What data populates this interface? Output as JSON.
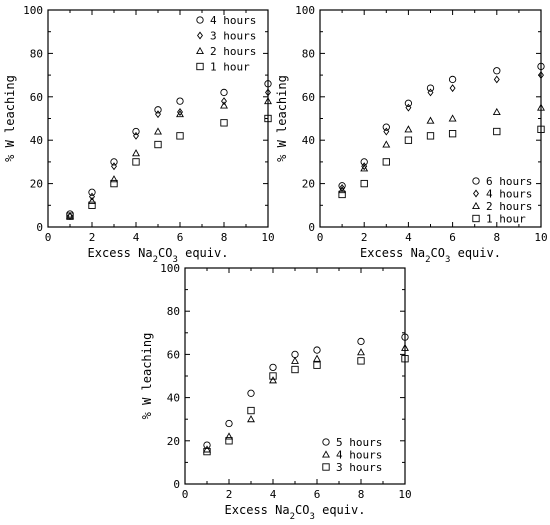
{
  "figure": {
    "description_free": true
  },
  "chart_data": [
    {
      "type": "scatter",
      "xlabel": "Excess Na2CO3 equiv.",
      "ylabel": "% W leaching",
      "xlim": [
        0,
        10
      ],
      "ylim": [
        0,
        100
      ],
      "xticks": [
        0,
        2,
        4,
        6,
        8,
        10
      ],
      "yticks": [
        0,
        20,
        40,
        60,
        80,
        100
      ],
      "legend_position": "top-right",
      "x": [
        1,
        2,
        3,
        4,
        5,
        6,
        8,
        10
      ],
      "series": [
        {
          "name": "4 hours",
          "marker": "circle",
          "values": [
            6,
            16,
            30,
            44,
            54,
            58,
            62,
            66
          ]
        },
        {
          "name": "3 hours",
          "marker": "diamond",
          "values": [
            5,
            14,
            28,
            42,
            52,
            53,
            58,
            62
          ]
        },
        {
          "name": "2 hours",
          "marker": "triangle",
          "values": [
            5,
            12,
            22,
            34,
            44,
            52,
            56,
            58
          ]
        },
        {
          "name": "1 hour",
          "marker": "square",
          "values": [
            5,
            10,
            20,
            30,
            38,
            42,
            48,
            50
          ]
        }
      ]
    },
    {
      "type": "scatter",
      "xlabel": "Excess Na2CO3 equiv.",
      "ylabel": "% W leaching",
      "xlim": [
        0,
        10
      ],
      "ylim": [
        0,
        100
      ],
      "xticks": [
        0,
        2,
        4,
        6,
        8,
        10
      ],
      "yticks": [
        0,
        20,
        40,
        60,
        80,
        100
      ],
      "legend_position": "bottom-right",
      "x": [
        1,
        2,
        3,
        4,
        5,
        6,
        8,
        10
      ],
      "series": [
        {
          "name": "6 hours",
          "marker": "circle",
          "values": [
            19,
            30,
            46,
            57,
            64,
            68,
            72,
            74
          ]
        },
        {
          "name": "4 hours",
          "marker": "diamond",
          "values": [
            18,
            28,
            44,
            55,
            62,
            64,
            68,
            70
          ]
        },
        {
          "name": "2 hours",
          "marker": "triangle",
          "values": [
            17,
            27,
            38,
            45,
            49,
            50,
            53,
            55
          ]
        },
        {
          "name": "1 hour",
          "marker": "square",
          "values": [
            15,
            20,
            30,
            40,
            42,
            43,
            44,
            45
          ]
        }
      ]
    },
    {
      "type": "scatter",
      "xlabel": "Excess Na2CO3 equiv.",
      "ylabel": "% W leaching",
      "xlim": [
        0,
        10
      ],
      "ylim": [
        0,
        100
      ],
      "xticks": [
        0,
        2,
        4,
        6,
        8,
        10
      ],
      "yticks": [
        0,
        20,
        40,
        60,
        80,
        100
      ],
      "legend_position": "bottom-right",
      "x": [
        1,
        2,
        3,
        4,
        5,
        6,
        8,
        10
      ],
      "series": [
        {
          "name": "5 hours",
          "marker": "circle",
          "values": [
            18,
            28,
            42,
            54,
            60,
            62,
            66,
            68
          ]
        },
        {
          "name": "4 hours",
          "marker": "triangle",
          "values": [
            16,
            22,
            30,
            48,
            57,
            58,
            61,
            63
          ]
        },
        {
          "name": "3 hours",
          "marker": "square",
          "values": [
            15,
            20,
            34,
            50,
            53,
            55,
            57,
            58
          ]
        }
      ]
    }
  ]
}
